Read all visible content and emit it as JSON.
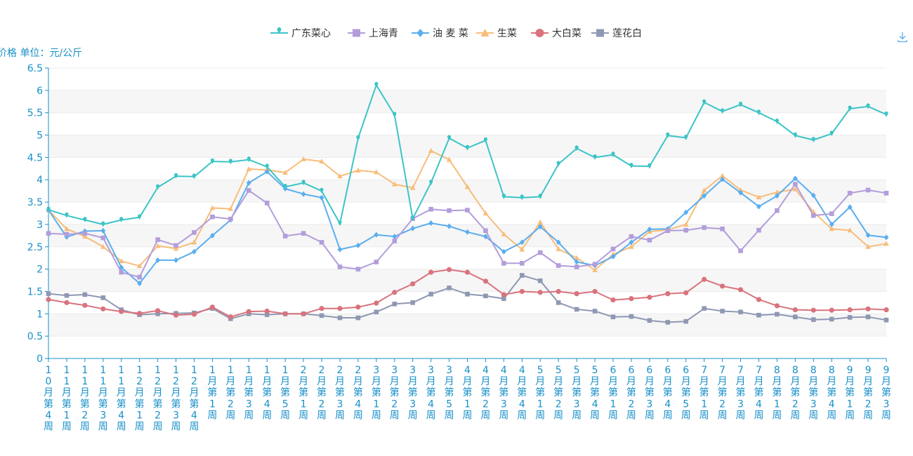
{
  "chart_data": {
    "type": "line",
    "ylabel": "价格 单位：元/公斤",
    "ylim": [
      0,
      6.5
    ],
    "yticks": [
      0,
      0.5,
      1,
      1.5,
      2,
      2.5,
      3,
      3.5,
      4,
      4.5,
      5,
      5.5,
      6,
      6.5
    ],
    "ytick_labels": [
      "0",
      "0.5",
      "1",
      "1.5",
      "2",
      "2.5",
      "3",
      "3.5",
      "4",
      "4.5",
      "5",
      "5.5",
      "6",
      "6.5"
    ],
    "grid": true,
    "legend": "top-center",
    "categories": [
      "10月第4周",
      "11月第1周",
      "11月第2周",
      "11月第3周",
      "11月第4周",
      "12月第1周",
      "12月第2周",
      "12月第3周",
      "12月第4周",
      "1月第1周",
      "1月第2周",
      "1月第3周",
      "1月第4周",
      "1月第5周",
      "2月第1周",
      "2月第2周",
      "2月第3周",
      "2月第4周",
      "3月第1周",
      "3月第2周",
      "3月第3周",
      "3月第4周",
      "3月第5周",
      "4月第1周",
      "4月第2周",
      "4月第3周",
      "4月第4周",
      "5月第1周",
      "5月第2周",
      "5月第3周",
      "5月第4周",
      "6月第1周",
      "6月第2周",
      "6月第3周",
      "6月第4周",
      "6月第5周",
      "7月第1周",
      "7月第2周",
      "7月第3周",
      "7月第4周",
      "8月第1周",
      "8月第2周",
      "8月第3周",
      "8月第4周",
      "9月第1周",
      "9月第2周",
      "9月第3周"
    ],
    "series": [
      {
        "name": "广东菜心",
        "color": "#3cc4c6",
        "marker": "pin",
        "values": [
          3.33,
          3.2,
          3.1,
          3.0,
          3.1,
          3.16,
          3.83,
          4.08,
          4.07,
          4.41,
          4.4,
          4.45,
          4.29,
          3.84,
          3.93,
          3.75,
          3.02,
          4.93,
          6.12,
          5.45,
          3.13,
          3.93,
          4.93,
          4.71,
          4.88,
          3.62,
          3.6,
          3.62,
          4.35,
          4.7,
          4.5,
          4.56,
          4.31,
          4.3,
          4.99,
          4.94,
          5.73,
          5.53,
          5.68,
          5.5,
          5.3,
          4.99,
          4.89,
          5.03,
          5.59,
          5.64,
          5.46
        ]
      },
      {
        "name": "上海青",
        "color": "#b39ddb",
        "marker": "square",
        "values": [
          2.8,
          2.78,
          2.8,
          2.7,
          1.93,
          1.82,
          2.66,
          2.53,
          2.82,
          3.17,
          3.12,
          3.76,
          3.48,
          2.74,
          2.8,
          2.6,
          2.05,
          2.0,
          2.16,
          2.63,
          3.13,
          3.34,
          3.31,
          3.32,
          2.86,
          2.13,
          2.13,
          2.37,
          2.08,
          2.05,
          2.11,
          2.45,
          2.73,
          2.65,
          2.86,
          2.87,
          2.93,
          2.9,
          2.41,
          2.87,
          3.31,
          3.9,
          3.2,
          3.24,
          3.7,
          3.77,
          3.7
        ]
      },
      {
        "name": "油 麦 菜",
        "color": "#5aaeee",
        "marker": "diamond",
        "values": [
          3.32,
          2.72,
          2.85,
          2.86,
          2.04,
          1.68,
          2.2,
          2.2,
          2.39,
          2.75,
          3.1,
          3.93,
          4.18,
          3.8,
          3.68,
          3.6,
          2.44,
          2.53,
          2.77,
          2.73,
          2.91,
          3.03,
          2.96,
          2.83,
          2.73,
          2.39,
          2.6,
          2.95,
          2.6,
          2.16,
          2.08,
          2.28,
          2.6,
          2.89,
          2.9,
          3.27,
          3.64,
          4.01,
          3.71,
          3.4,
          3.64,
          4.03,
          3.65,
          3.0,
          3.39,
          2.76,
          2.71
        ]
      },
      {
        "name": "生菜",
        "color": "#f7bd7a",
        "marker": "triangle",
        "values": [
          3.32,
          2.9,
          2.73,
          2.5,
          2.18,
          2.07,
          2.52,
          2.46,
          2.6,
          3.37,
          3.35,
          4.24,
          4.22,
          4.16,
          4.46,
          4.41,
          4.08,
          4.21,
          4.17,
          3.9,
          3.82,
          4.65,
          4.45,
          3.84,
          3.25,
          2.78,
          2.44,
          3.05,
          2.45,
          2.25,
          1.98,
          2.33,
          2.5,
          2.84,
          2.88,
          3.0,
          3.76,
          4.09,
          3.77,
          3.61,
          3.72,
          3.79,
          3.28,
          2.9,
          2.87,
          2.5,
          2.57
        ]
      },
      {
        "name": "大白菜",
        "color": "#d9737d",
        "marker": "circle",
        "values": [
          1.32,
          1.25,
          1.19,
          1.11,
          1.05,
          1.01,
          1.07,
          0.97,
          0.99,
          1.15,
          0.93,
          1.05,
          1.06,
          1.0,
          1.0,
          1.12,
          1.12,
          1.15,
          1.24,
          1.48,
          1.67,
          1.93,
          1.99,
          1.93,
          1.73,
          1.43,
          1.5,
          1.48,
          1.5,
          1.45,
          1.5,
          1.31,
          1.34,
          1.37,
          1.45,
          1.47,
          1.77,
          1.62,
          1.54,
          1.32,
          1.18,
          1.09,
          1.08,
          1.08,
          1.09,
          1.11,
          1.09
        ]
      },
      {
        "name": "莲花白",
        "color": "#8f98b3",
        "marker": "rect",
        "values": [
          1.45,
          1.41,
          1.43,
          1.36,
          1.09,
          0.98,
          1.0,
          1.01,
          1.02,
          1.12,
          0.89,
          1.0,
          0.98,
          1.0,
          1.0,
          0.96,
          0.91,
          0.91,
          1.04,
          1.22,
          1.25,
          1.44,
          1.58,
          1.44,
          1.4,
          1.34,
          1.86,
          1.74,
          1.25,
          1.1,
          1.06,
          0.93,
          0.94,
          0.85,
          0.81,
          0.83,
          1.12,
          1.06,
          1.04,
          0.97,
          0.99,
          0.93,
          0.87,
          0.88,
          0.92,
          0.93,
          0.86
        ]
      }
    ]
  }
}
